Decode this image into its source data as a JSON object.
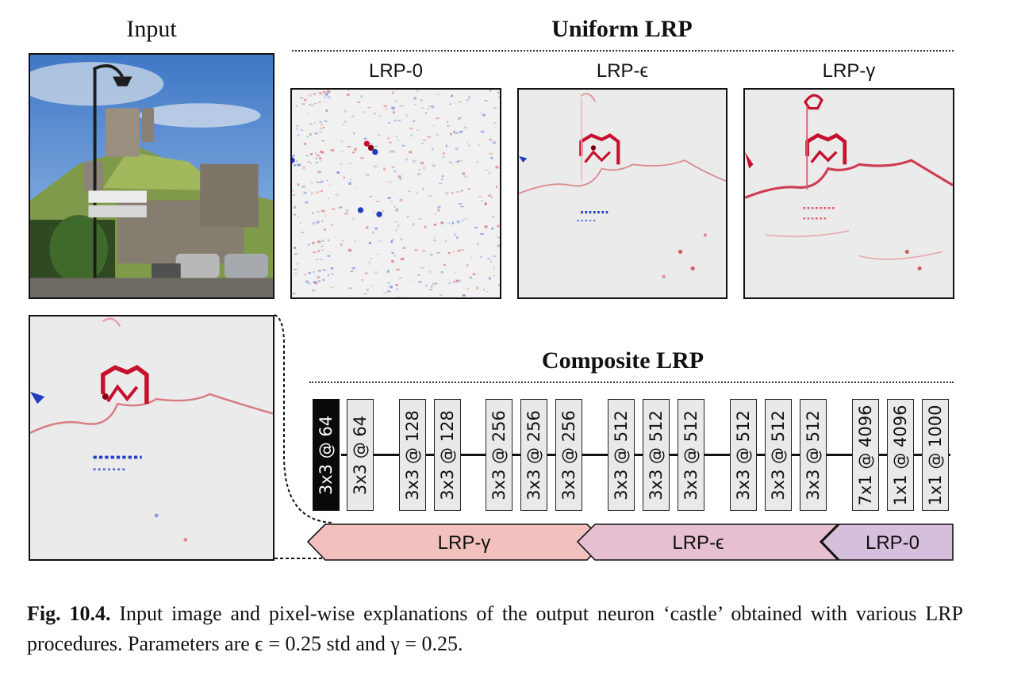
{
  "headings": {
    "input": "Input",
    "uniform": "Uniform LRP",
    "composite": "Composite LRP"
  },
  "uniform_panels": [
    {
      "label": "LRP-0"
    },
    {
      "label": "LRP-ϵ"
    },
    {
      "label": "LRP-γ"
    }
  ],
  "layers": [
    {
      "label": "3x3 @ 64",
      "highlighted": true
    },
    {
      "label": "3x3 @ 64"
    },
    {
      "label": "3x3 @ 128"
    },
    {
      "label": "3x3 @ 128"
    },
    {
      "label": "3x3 @ 256"
    },
    {
      "label": "3x3 @ 256"
    },
    {
      "label": "3x3 @ 256"
    },
    {
      "label": "3x3 @ 512"
    },
    {
      "label": "3x3 @ 512"
    },
    {
      "label": "3x3 @ 512"
    },
    {
      "label": "3x3 @ 512"
    },
    {
      "label": "3x3 @ 512"
    },
    {
      "label": "3x3 @ 512"
    },
    {
      "label": "7x1 @ 4096"
    },
    {
      "label": "1x1 @ 4096"
    },
    {
      "label": "1x1 @ 1000"
    }
  ],
  "rule_arrows": [
    {
      "label": "LRP-γ",
      "color": "#f2c0bd"
    },
    {
      "label": "LRP-ϵ",
      "color": "#e6c0d0"
    },
    {
      "label": "LRP-0",
      "color": "#d6bfdc"
    }
  ],
  "caption": {
    "fig_label": "Fig. 10.4.",
    "text": "Input image and pixel-wise explanations of the output neuron ‘castle’ obtained with various LRP procedures. Parameters are ϵ = 0.25 std and γ = 0.25."
  },
  "colors": {
    "positive_relevance": "#c8102e",
    "negative_relevance": "#1f3fbf",
    "heatmap_background": "#ebebeb"
  }
}
